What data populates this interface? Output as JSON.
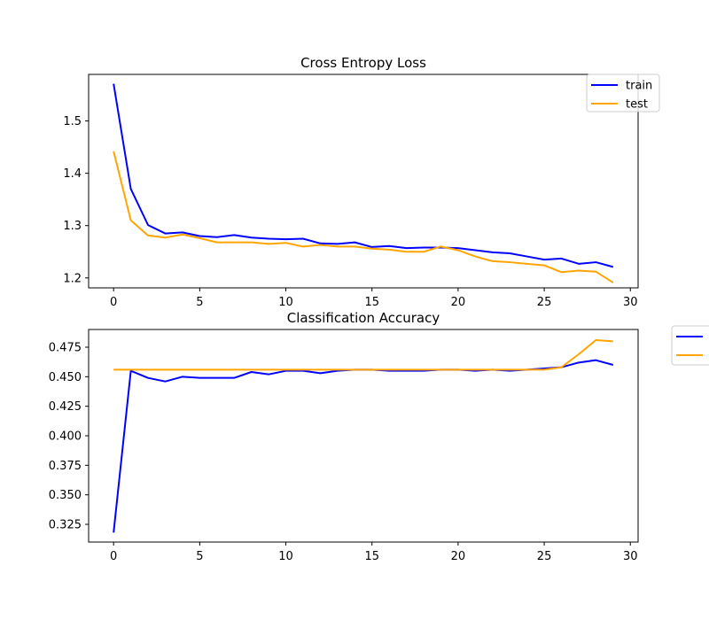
{
  "chart_data": [
    {
      "type": "line",
      "title": "Cross Entropy Loss",
      "xlabel": "",
      "ylabel": "",
      "xlim": [
        -1.45,
        30.45
      ],
      "ylim": [
        1.181,
        1.589
      ],
      "xticks": [
        0,
        5,
        10,
        15,
        20,
        25,
        30
      ],
      "yticks": [
        1.2,
        1.3,
        1.4,
        1.5
      ],
      "ytick_labels": [
        "1.2",
        "1.3",
        "1.4",
        "1.5"
      ],
      "grid": false,
      "legend": {
        "placement": "top-right",
        "entries": [
          "train",
          "test"
        ]
      },
      "series": [
        {
          "name": "train",
          "color": "#0000ff",
          "values": [
            1.571,
            1.37,
            1.301,
            1.285,
            1.287,
            1.28,
            1.278,
            1.282,
            1.277,
            1.275,
            1.274,
            1.275,
            1.266,
            1.265,
            1.268,
            1.259,
            1.261,
            1.257,
            1.258,
            1.258,
            1.257,
            1.253,
            1.249,
            1.247,
            1.241,
            1.235,
            1.237,
            1.227,
            1.23,
            1.221
          ]
        },
        {
          "name": "test",
          "color": "#ffa500",
          "values": [
            1.442,
            1.31,
            1.281,
            1.277,
            1.283,
            1.276,
            1.268,
            1.268,
            1.268,
            1.265,
            1.267,
            1.26,
            1.263,
            1.26,
            1.26,
            1.256,
            1.254,
            1.25,
            1.25,
            1.26,
            1.253,
            1.241,
            1.232,
            1.23,
            1.227,
            1.224,
            1.211,
            1.214,
            1.212,
            1.191
          ]
        }
      ]
    },
    {
      "type": "line",
      "title": "Classification Accuracy",
      "xlabel": "",
      "ylabel": "",
      "xlim": [
        -1.45,
        30.45
      ],
      "ylim": [
        0.31,
        0.49
      ],
      "xticks": [
        0,
        5,
        10,
        15,
        20,
        25,
        30
      ],
      "yticks": [
        0.325,
        0.35,
        0.375,
        0.4,
        0.425,
        0.45,
        0.475
      ],
      "ytick_labels": [
        "0.325",
        "0.350",
        "0.375",
        "0.400",
        "0.425",
        "0.450",
        "0.475"
      ],
      "grid": false,
      "legend": {
        "placement": "outside-right",
        "entries": [
          "",
          ""
        ]
      },
      "series": [
        {
          "color": "#0000ff",
          "values": [
            0.318,
            0.455,
            0.449,
            0.446,
            0.45,
            0.449,
            0.449,
            0.449,
            0.454,
            0.452,
            0.455,
            0.455,
            0.453,
            0.455,
            0.456,
            0.456,
            0.455,
            0.455,
            0.455,
            0.456,
            0.456,
            0.455,
            0.456,
            0.455,
            0.456,
            0.457,
            0.458,
            0.462,
            0.464,
            0.46
          ]
        },
        {
          "color": "#ffa500",
          "values": [
            0.456,
            0.456,
            0.456,
            0.456,
            0.456,
            0.456,
            0.456,
            0.456,
            0.456,
            0.456,
            0.456,
            0.456,
            0.456,
            0.456,
            0.456,
            0.456,
            0.456,
            0.456,
            0.456,
            0.456,
            0.456,
            0.456,
            0.456,
            0.456,
            0.456,
            0.456,
            0.458,
            0.469,
            0.481,
            0.48
          ]
        }
      ]
    }
  ]
}
